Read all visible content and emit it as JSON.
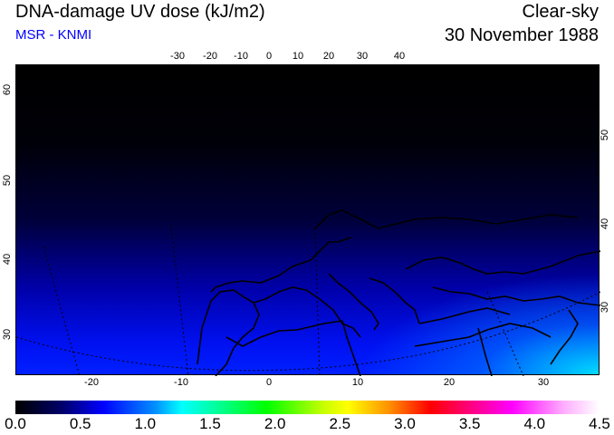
{
  "header": {
    "title": "DNA-damage UV dose (kJ/m2)",
    "source": "MSR - KNMI",
    "condition": "Clear-sky",
    "date": "30 November 1988"
  },
  "map": {
    "top_lon_labels": [
      "-30",
      "-20",
      "-10",
      "0",
      "10",
      "20",
      "30",
      "40"
    ],
    "bottom_lon_labels": [
      "-20",
      "-10",
      "0",
      "10",
      "20",
      "30"
    ],
    "left_lat_labels": [
      "60",
      "50",
      "40",
      "30"
    ],
    "right_lat_labels": [
      "50",
      "40",
      "30"
    ]
  },
  "colorbar": {
    "labels": [
      "0.0",
      "0.5",
      "1.0",
      "1.5",
      "2.0",
      "2.5",
      "3.0",
      "3.5",
      "4.0",
      "4.5"
    ],
    "min": 0,
    "max": 4.5,
    "colors": [
      "#000000",
      "#0000ff",
      "#00ffff",
      "#00ff00",
      "#ffff00",
      "#ff0000",
      "#ff00ff",
      "#ffffff"
    ]
  }
}
